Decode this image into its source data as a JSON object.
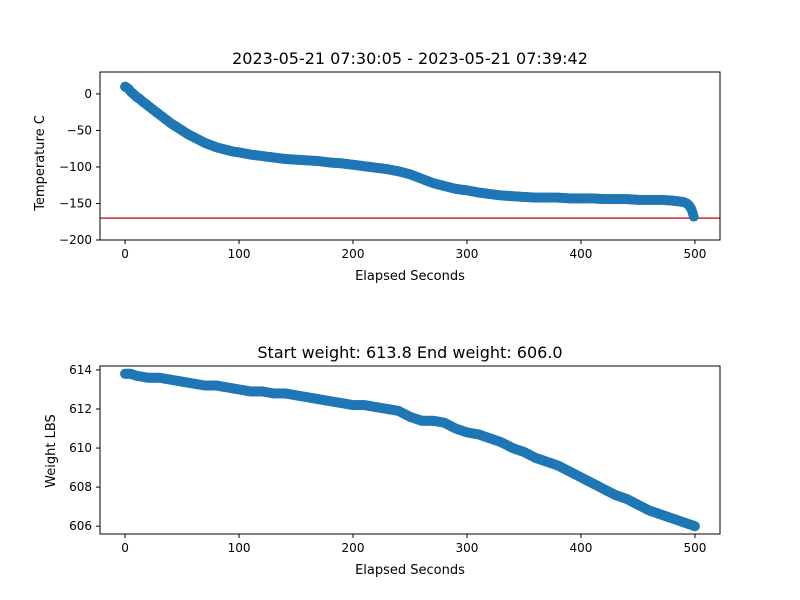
{
  "chart_data": [
    {
      "type": "scatter",
      "title": "2023-05-21 07:30:05 - 2023-05-21 07:39:42",
      "xlabel": "Elapsed Seconds",
      "ylabel": "Temperature C",
      "xlim": [
        -22,
        522
      ],
      "ylim": [
        -200,
        30
      ],
      "xticks": [
        0,
        100,
        200,
        300,
        400,
        500
      ],
      "yticks": [
        0,
        -50,
        -100,
        -150,
        -200
      ],
      "xtick_labels": [
        "0",
        "100",
        "200",
        "300",
        "400",
        "500"
      ],
      "ytick_labels": [
        "0",
        "−50",
        "−100",
        "−150",
        "−200"
      ],
      "grid": false,
      "point_color": "#1f77b4",
      "reference_line": {
        "y": -170,
        "color": "#d62728"
      },
      "series": [
        {
          "x": [
            0,
            3,
            5,
            8,
            10,
            13,
            15,
            20,
            25,
            30,
            35,
            40,
            45,
            50,
            55,
            60,
            65,
            70,
            75,
            80,
            85,
            90,
            95,
            100,
            110,
            120,
            130,
            140,
            150,
            160,
            170,
            180,
            190,
            200,
            210,
            220,
            230,
            240,
            250,
            255,
            260,
            265,
            270,
            280,
            290,
            300,
            310,
            320,
            330,
            340,
            350,
            360,
            370,
            380,
            390,
            400,
            410,
            420,
            430,
            440,
            450,
            460,
            470,
            480,
            485,
            490,
            493,
            495,
            497,
            499
          ],
          "y": [
            10,
            7,
            3,
            -1,
            -4,
            -7,
            -10,
            -16,
            -22,
            -28,
            -34,
            -40,
            -45,
            -50,
            -55,
            -59,
            -63,
            -67,
            -70,
            -73,
            -75,
            -77,
            -79,
            -80,
            -83,
            -85,
            -87,
            -89,
            -90,
            -91,
            -92,
            -94,
            -95,
            -97,
            -99,
            -101,
            -103,
            -106,
            -110,
            -113,
            -116,
            -119,
            -122,
            -126,
            -130,
            -132,
            -135,
            -137,
            -139,
            -140,
            -141,
            -142,
            -142,
            -142,
            -143,
            -143,
            -143,
            -144,
            -144,
            -144,
            -145,
            -145,
            -145,
            -146,
            -147,
            -148,
            -150,
            -153,
            -158,
            -168
          ]
        }
      ]
    },
    {
      "type": "scatter",
      "title": "Start weight: 613.8 End weight: 606.0",
      "xlabel": "Elapsed Seconds",
      "ylabel": "Weight LBS",
      "xlim": [
        -22,
        522
      ],
      "ylim": [
        605.6,
        614.2
      ],
      "xticks": [
        0,
        100,
        200,
        300,
        400,
        500
      ],
      "yticks": [
        614,
        612,
        610,
        608,
        606
      ],
      "xtick_labels": [
        "0",
        "100",
        "200",
        "300",
        "400",
        "500"
      ],
      "ytick_labels": [
        "614",
        "612",
        "610",
        "608",
        "606"
      ],
      "grid": false,
      "point_color": "#1f77b4",
      "series": [
        {
          "x": [
            0,
            5,
            10,
            20,
            30,
            40,
            50,
            60,
            70,
            80,
            90,
            100,
            110,
            120,
            130,
            140,
            150,
            160,
            170,
            180,
            190,
            200,
            210,
            220,
            230,
            240,
            250,
            260,
            270,
            280,
            290,
            300,
            310,
            320,
            330,
            340,
            350,
            360,
            370,
            380,
            390,
            400,
            410,
            420,
            430,
            440,
            450,
            460,
            470,
            480,
            490,
            500
          ],
          "y": [
            613.8,
            613.8,
            613.7,
            613.6,
            613.6,
            613.5,
            613.4,
            613.3,
            613.2,
            613.2,
            613.1,
            613.0,
            612.9,
            612.9,
            612.8,
            612.8,
            612.7,
            612.6,
            612.5,
            612.4,
            612.3,
            612.2,
            612.2,
            612.1,
            612.0,
            611.9,
            611.6,
            611.4,
            611.4,
            611.3,
            611.0,
            610.8,
            610.7,
            610.5,
            610.3,
            610.0,
            609.8,
            609.5,
            609.3,
            609.1,
            608.8,
            608.5,
            608.2,
            607.9,
            607.6,
            607.4,
            607.1,
            606.8,
            606.6,
            606.4,
            606.2,
            606.0
          ]
        }
      ]
    }
  ]
}
